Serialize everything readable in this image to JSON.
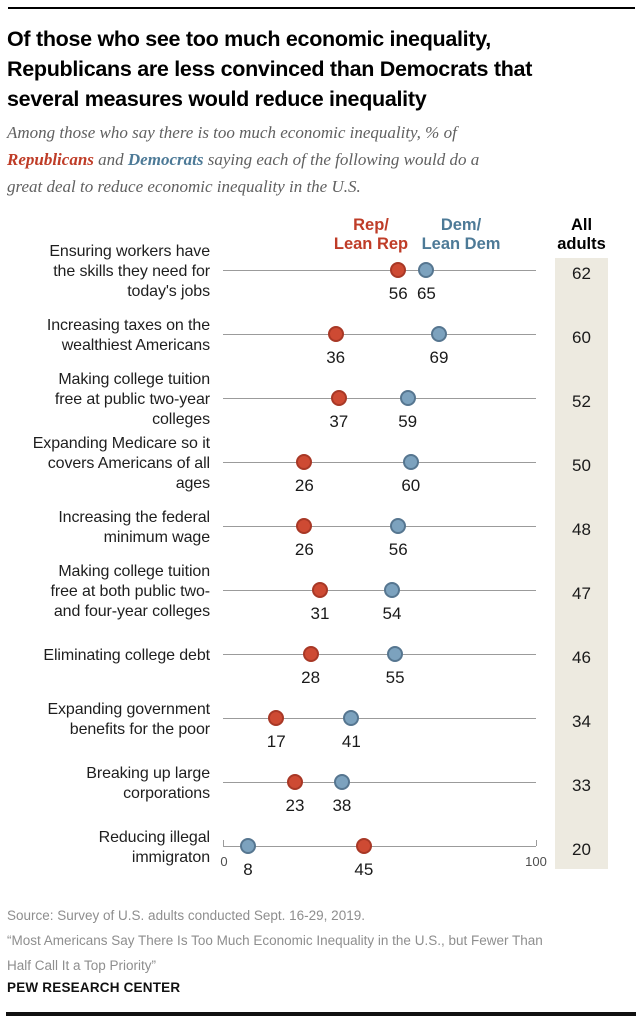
{
  "header": {
    "title_lines": [
      "Of those who see too much economic inequality,",
      "Republicans are less convinced than Democrats that",
      "several measures would reduce inequality"
    ],
    "subtitle_lines": [
      [
        {
          "text": "Among those who say there is too much economic inequality, % of"
        }
      ],
      [
        {
          "text": "Republicans",
          "style": "rep"
        },
        {
          "text": " and "
        },
        {
          "text": "Democrats",
          "style": "dem"
        },
        {
          "text": " saying each of the following would do a"
        }
      ],
      [
        {
          "text": "great deal to reduce economic inequality in the U.S."
        }
      ]
    ]
  },
  "chart_data": {
    "type": "scatter",
    "subtype": "dot-plot",
    "title": "Of those who see too much economic inequality, Republicans are less convinced than Democrats that several measures would reduce inequality",
    "xlabel": "",
    "ylabel": "",
    "axis": {
      "min": 0,
      "max": 100,
      "tick_labels": [
        "0",
        "100"
      ],
      "grid": false
    },
    "legend": [
      {
        "id": "rep",
        "label_lines": [
          "Rep/",
          "Lean Rep"
        ],
        "color": "#bf3c27"
      },
      {
        "id": "dem",
        "label_lines": [
          "Dem/",
          "Lean Dem"
        ],
        "color": "#4d7a97"
      }
    ],
    "all_adults_header_lines": [
      "All",
      "adults"
    ],
    "rows": [
      {
        "label_lines": [
          "Ensuring workers have",
          "the skills they need for",
          "today's jobs"
        ],
        "rep": 56,
        "dem": 65,
        "all": 62
      },
      {
        "label_lines": [
          "Increasing taxes on the",
          "wealthiest Americans"
        ],
        "rep": 36,
        "dem": 69,
        "all": 60
      },
      {
        "label_lines": [
          "Making college tuition",
          "free at public two-year",
          "colleges"
        ],
        "rep": 37,
        "dem": 59,
        "all": 52
      },
      {
        "label_lines": [
          "Expanding Medicare so it",
          "covers Americans of all",
          "ages"
        ],
        "rep": 26,
        "dem": 60,
        "all": 50
      },
      {
        "label_lines": [
          "Increasing the federal",
          "minimum wage"
        ],
        "rep": 26,
        "dem": 56,
        "all": 48
      },
      {
        "label_lines": [
          "Making college tuition",
          "free at both public two-",
          "and four-year colleges"
        ],
        "rep": 31,
        "dem": 54,
        "all": 47
      },
      {
        "label_lines": [
          "Eliminating college debt"
        ],
        "rep": 28,
        "dem": 55,
        "all": 46
      },
      {
        "label_lines": [
          "Expanding government",
          "benefits for the poor"
        ],
        "rep": 17,
        "dem": 41,
        "all": 34
      },
      {
        "label_lines": [
          "Breaking up large",
          "corporations"
        ],
        "rep": 23,
        "dem": 38,
        "all": 33
      },
      {
        "label_lines": [
          "Reducing illegal",
          "immigraton"
        ],
        "rep": 45,
        "dem": 8,
        "all": 20
      }
    ],
    "colors": {
      "rep_text": "#bf3c27",
      "dem_text": "#4d7a97",
      "rep_dot_fill": "#ce4a33",
      "rep_dot_stroke": "#a83826",
      "dem_dot_fill": "#7ca2be",
      "dem_dot_stroke": "#567690",
      "row_line": "#9b9b9b",
      "all_adults_bg": "#edeae0"
    }
  },
  "footer": {
    "source_lines": [
      "Source: Survey of U.S. adults conducted Sept. 16-29, 2019.",
      "“Most Americans Say There Is Too Much Economic Inequality in the U.S., but Fewer Than",
      "Half Call It a Top Priority”"
    ],
    "brand": "PEW RESEARCH CENTER"
  }
}
